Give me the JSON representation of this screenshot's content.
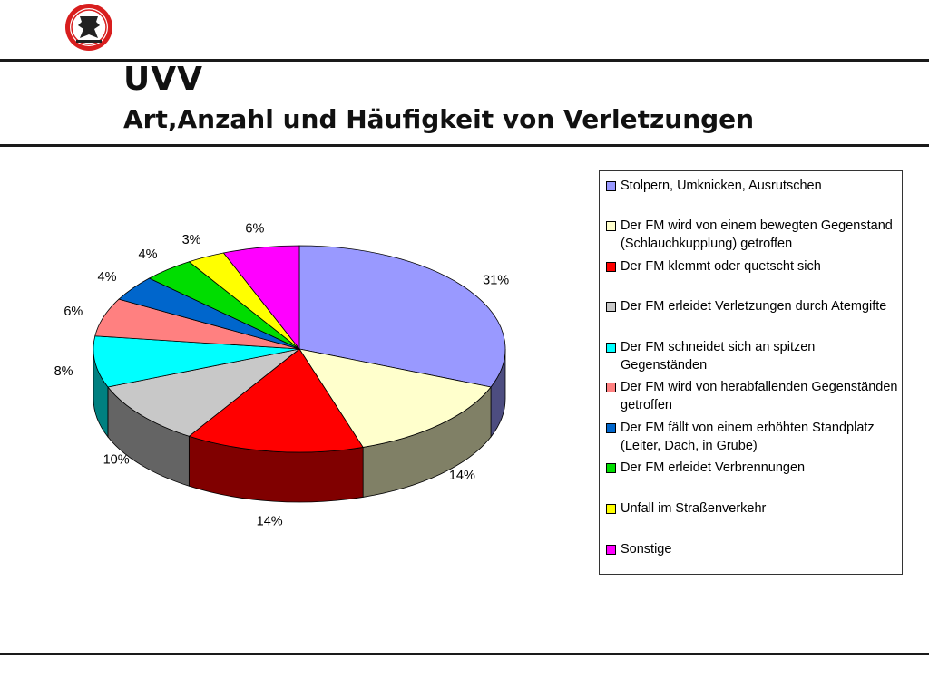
{
  "header": {
    "title": "UVV",
    "subtitle": "Art,Anzahl und Häufigkeit von Verletzungen"
  },
  "chart_data": {
    "type": "pie",
    "title": "",
    "slices": [
      {
        "label": "Stolpern, Umknicken, Ausrutschen",
        "value": 31,
        "value_label": "31%",
        "color": "#9999FF"
      },
      {
        "label": "Der FM wird von einem bewegten Gegenstand (Schlauchkupplung) getroffen",
        "value": 14,
        "value_label": "14%",
        "color": "#FFFFCC"
      },
      {
        "label": "Der FM klemmt oder quetscht sich",
        "value": 14,
        "value_label": "14%",
        "color": "#FF0000"
      },
      {
        "label": "Der FM erleidet Verletzungen durch Atemgifte",
        "value": 10,
        "value_label": "10%",
        "color": "#C8C8C8"
      },
      {
        "label": "Der FM schneidet sich an spitzen Gegenständen",
        "value": 8,
        "value_label": "8%",
        "color": "#00FFFF"
      },
      {
        "label": "Der FM wird von herabfallenden Gegenständen getroffen",
        "value": 6,
        "value_label": "6%",
        "color": "#FF8080"
      },
      {
        "label": "Der FM fällt von einem erhöhten Standplatz (Leiter, Dach, in Grube)",
        "value": 4,
        "value_label": "4%",
        "color": "#0066CC"
      },
      {
        "label": "Der FM erleidet Verbrennungen",
        "value": 4,
        "value_label": "4%",
        "color": "#00DD00"
      },
      {
        "label": "Unfall im Straßenverkehr",
        "value": 3,
        "value_label": "3%",
        "color": "#FFFF00"
      },
      {
        "label": "Sonstige",
        "value": 6,
        "value_label": "6%",
        "color": "#FF00FF"
      }
    ],
    "legend_position": "right"
  }
}
